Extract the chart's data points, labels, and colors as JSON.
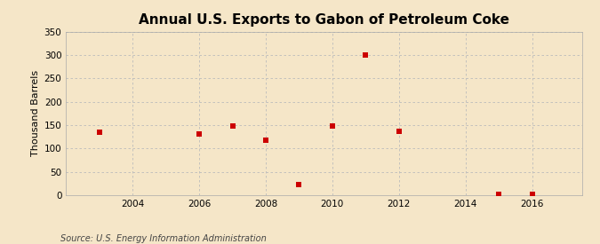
{
  "title": "Annual U.S. Exports to Gabon of Petroleum Coke",
  "ylabel": "Thousand Barrels",
  "source_text": "Source: U.S. Energy Information Administration",
  "background_color": "#f5e6c8",
  "plot_bg_color": "#f5e6c8",
  "years": [
    2003,
    2006,
    2007,
    2008,
    2009,
    2010,
    2011,
    2012,
    2015,
    2016
  ],
  "values": [
    135,
    132,
    148,
    118,
    22,
    148,
    300,
    137,
    2,
    2
  ],
  "marker_color": "#cc0000",
  "marker": "s",
  "marker_size": 4,
  "xlim": [
    2002.0,
    2017.5
  ],
  "ylim": [
    0,
    350
  ],
  "yticks": [
    0,
    50,
    100,
    150,
    200,
    250,
    300,
    350
  ],
  "xticks": [
    2004,
    2006,
    2008,
    2010,
    2012,
    2014,
    2016
  ],
  "grid_color": "#bbbbbb",
  "grid_style": "--",
  "title_fontsize": 11,
  "label_fontsize": 8,
  "tick_fontsize": 7.5,
  "source_fontsize": 7
}
